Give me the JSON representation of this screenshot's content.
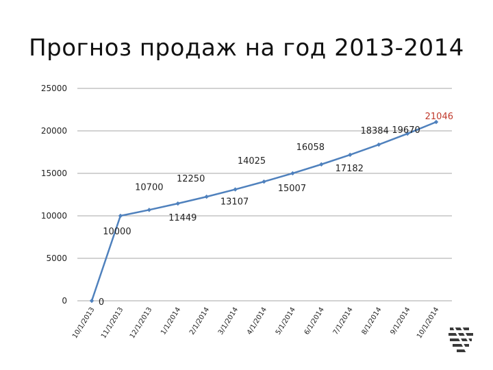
{
  "title": "Прогноз продаж  на год 2013-2014",
  "chart_data": {
    "type": "line",
    "title": "Прогноз продаж  на год 2013-2014",
    "x": [
      "10/1/2013",
      "11/1/2013",
      "12/1/2013",
      "1/1/2014",
      "2/1/2014",
      "3/1/2014",
      "4/1/2014",
      "5/1/2014",
      "6/1/2014",
      "7/1/2014",
      "8/1/2014",
      "9/1/2014",
      "10/1/2014"
    ],
    "values": [
      0,
      10000,
      10700,
      11449,
      12250,
      13107,
      14025,
      15007,
      16058,
      17182,
      18384,
      19670,
      21046
    ],
    "labels": [
      "0",
      "10000",
      "10700",
      "11449",
      "12250",
      "13107",
      "14025",
      "15007",
      "16058",
      "17182",
      "18384",
      "19670",
      "21046"
    ],
    "yticks": [
      "0",
      "5000",
      "10000",
      "15000",
      "20000",
      "25000"
    ],
    "ylim": [
      0,
      25000
    ],
    "grid": true,
    "line_color": "#4f81bd",
    "last_label_color": "#c0392b"
  },
  "logo": {
    "icon": "striped-logo-icon"
  }
}
